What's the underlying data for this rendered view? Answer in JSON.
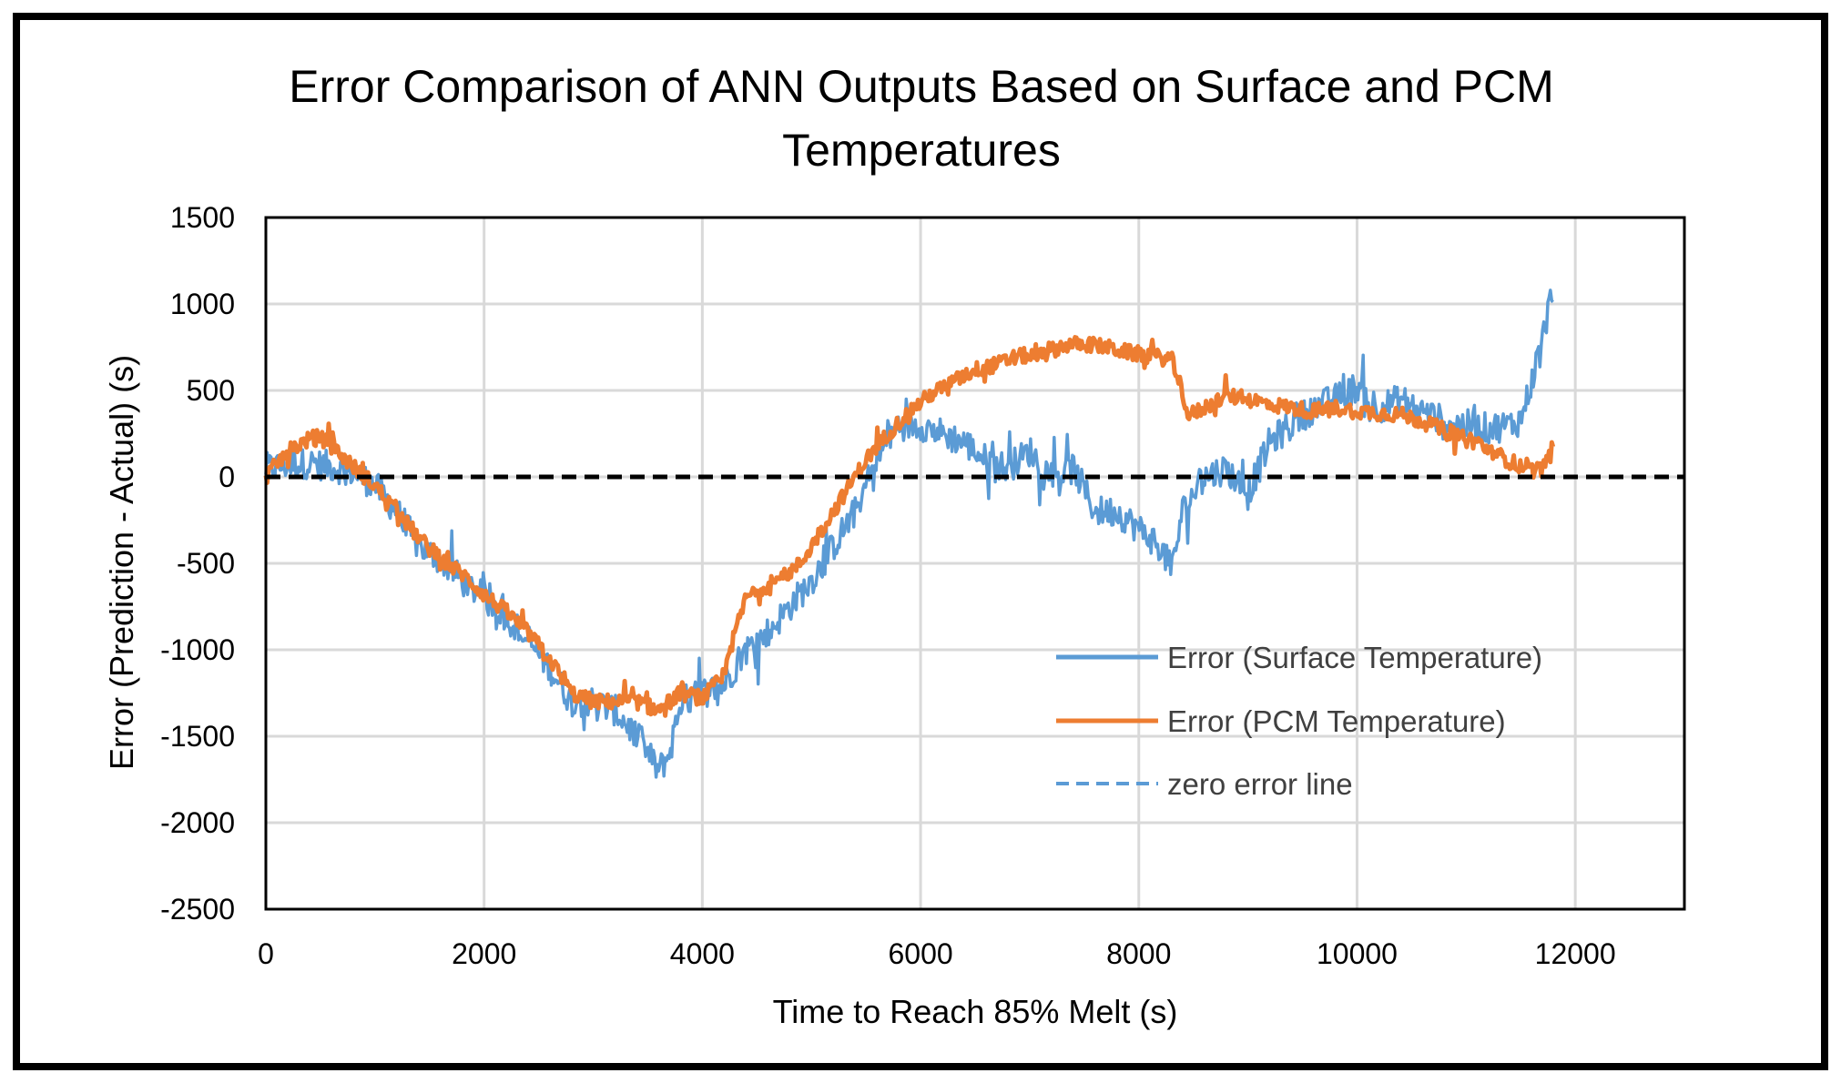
{
  "chart_data": {
    "type": "line",
    "title_lines": [
      "Error Comparison of ANN Outputs Based on Surface and PCM",
      "Temperatures"
    ],
    "xlabel": "Time to Reach 85% Melt (s)",
    "ylabel": "Error (Prediction - Actual) (s)",
    "xlim": [
      0,
      13000
    ],
    "ylim": [
      -2500,
      1500
    ],
    "x_ticks": [
      0,
      2000,
      4000,
      6000,
      8000,
      10000,
      12000
    ],
    "x_tick_labels": [
      "0",
      "2000",
      "4000",
      "6000",
      "8000",
      "10000",
      "12000"
    ],
    "y_ticks": [
      1500,
      1000,
      500,
      0,
      -500,
      -1000,
      -1500,
      -2000,
      -2500
    ],
    "y_tick_labels": [
      "1500",
      "1000",
      "500",
      "0",
      "-500",
      "-1000",
      "-1500",
      "-2000",
      "-2500"
    ],
    "grid": true,
    "legend_position": "lower-right",
    "series": [
      {
        "name": "Error (Surface Temperature)",
        "color": "#5B9BD5",
        "style": "solid",
        "noise": 90,
        "x": [
          0,
          200,
          400,
          600,
          800,
          1000,
          1200,
          1400,
          1600,
          1800,
          2000,
          2200,
          2400,
          2600,
          2800,
          3000,
          3200,
          3400,
          3600,
          3700,
          3800,
          4000,
          4200,
          4400,
          4600,
          4800,
          5000,
          5200,
          5400,
          5600,
          5800,
          6000,
          6200,
          6400,
          6600,
          6800,
          7000,
          7200,
          7400,
          7600,
          7800,
          8000,
          8200,
          8300,
          8400,
          8600,
          8800,
          9000,
          9200,
          9400,
          9600,
          9800,
          10000,
          10200,
          10400,
          10600,
          10800,
          11000,
          11200,
          11400,
          11500,
          11600,
          11700,
          11800
        ],
        "y": [
          50,
          70,
          80,
          60,
          30,
          -50,
          -200,
          -400,
          -480,
          -600,
          -700,
          -800,
          -950,
          -1100,
          -1300,
          -1300,
          -1350,
          -1500,
          -1700,
          -1600,
          -1300,
          -1250,
          -1200,
          -1000,
          -900,
          -750,
          -600,
          -400,
          -200,
          100,
          300,
          300,
          250,
          200,
          100,
          50,
          150,
          0,
          50,
          -200,
          -200,
          -300,
          -400,
          -550,
          -200,
          0,
          50,
          -100,
          200,
          300,
          400,
          450,
          520,
          400,
          450,
          380,
          320,
          300,
          280,
          300,
          330,
          550,
          800,
          1100
        ]
      },
      {
        "name": "Error (PCM Temperature)",
        "color": "#ED7D31",
        "style": "solid",
        "noise": 45,
        "x": [
          0,
          200,
          400,
          500,
          600,
          800,
          1000,
          1200,
          1400,
          1600,
          1800,
          2000,
          2200,
          2400,
          2600,
          2800,
          3000,
          3200,
          3400,
          3600,
          3800,
          4000,
          4200,
          4300,
          4400,
          4500,
          4700,
          4900,
          5100,
          5300,
          5500,
          5700,
          5900,
          6100,
          6300,
          6500,
          6700,
          6900,
          7100,
          7300,
          7500,
          7700,
          7900,
          8100,
          8300,
          8400,
          8450,
          8600,
          8800,
          9000,
          9200,
          9400,
          9600,
          9800,
          10000,
          10200,
          10400,
          10600,
          10800,
          11000,
          11200,
          11400,
          11600,
          11700,
          11800
        ],
        "y": [
          0,
          150,
          220,
          230,
          180,
          60,
          -50,
          -200,
          -350,
          -480,
          -560,
          -680,
          -780,
          -900,
          -1050,
          -1250,
          -1300,
          -1300,
          -1300,
          -1350,
          -1250,
          -1280,
          -1150,
          -900,
          -700,
          -650,
          -600,
          -500,
          -300,
          -100,
          100,
          250,
          380,
          480,
          550,
          620,
          650,
          700,
          700,
          760,
          770,
          750,
          720,
          700,
          680,
          500,
          350,
          400,
          470,
          450,
          420,
          400,
          380,
          400,
          380,
          370,
          360,
          320,
          270,
          230,
          160,
          90,
          40,
          40,
          180
        ]
      },
      {
        "name": "zero error line",
        "color": "#000000",
        "legend_color": "#5B9BD5",
        "style": "dashed",
        "x": [
          0,
          13000
        ],
        "y": [
          0,
          0
        ]
      }
    ]
  }
}
